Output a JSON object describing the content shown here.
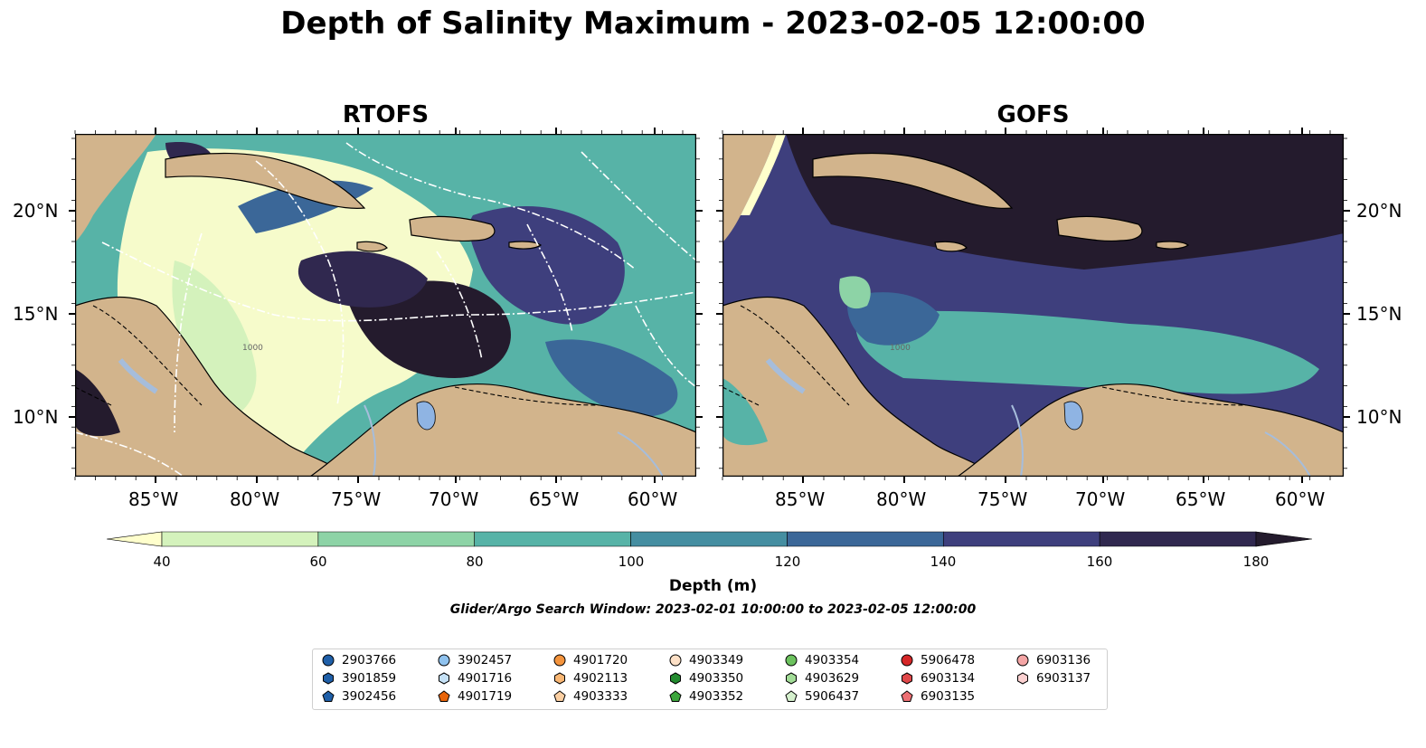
{
  "title": "Depth of Salinity Maximum - 2023-02-05 12:00:00",
  "panels": [
    {
      "title": "RTOFS"
    },
    {
      "title": "GOFS"
    }
  ],
  "lat_labels": [
    "20°N",
    "15°N",
    "10°N"
  ],
  "lon_labels": [
    "85°W",
    "80°W",
    "75°W",
    "70°W",
    "65°W",
    "60°W"
  ],
  "contour_label": "1000",
  "colorbar": {
    "ticks": [
      "40",
      "60",
      "80",
      "100",
      "120",
      "140",
      "160",
      "180"
    ],
    "label": "Depth (m)",
    "colors": [
      "#ffffcc",
      "#d4f2bc",
      "#8dd3a6",
      "#57b3a7",
      "#458ea1",
      "#3b6798",
      "#3e3f7d",
      "#30284f",
      "#241b2d"
    ]
  },
  "search_window": "Glider/Argo Search Window: 2023-02-01 10:00:00 to 2023-02-05 12:00:00",
  "legend": [
    [
      "2903766",
      "3901859",
      "3902456"
    ],
    [
      "3902457",
      "4901716",
      "4901719"
    ],
    [
      "4901720",
      "4902113",
      "4903333"
    ],
    [
      "4903349",
      "4903350",
      "4903352"
    ],
    [
      "4903354",
      "4903629",
      "5906437"
    ],
    [
      "5906478",
      "6903134",
      "6903135"
    ],
    [
      "6903136",
      "6903137"
    ]
  ],
  "colors": {
    "land": "#d2b48c",
    "lake": "#8fb4e3",
    "river": "#a6bddb"
  }
}
